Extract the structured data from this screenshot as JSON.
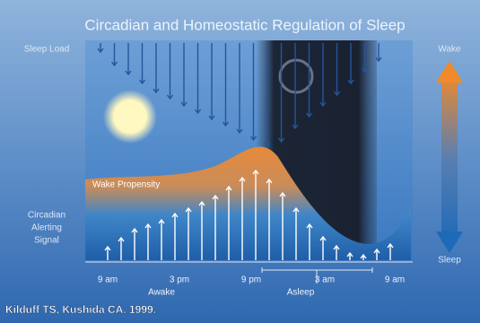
{
  "header": {
    "title": "Circadian and Homeostatic Regulation of Sleep"
  },
  "labels": {
    "sleep_load": "Sleep Load",
    "wake": "Wake",
    "sleep": "Sleep",
    "wake_propensity": "Wake Propensity",
    "circadian_signal": [
      "Circadian",
      "Alerting",
      "Signal"
    ]
  },
  "time_axis": {
    "ticks": [
      "9 am",
      "3 pm",
      "9 pm",
      "3 am",
      "9 am"
    ],
    "phases": [
      "Awake",
      "Asleep"
    ]
  },
  "citation": "Kilduff TS, Kushida CA. 1999."
}
